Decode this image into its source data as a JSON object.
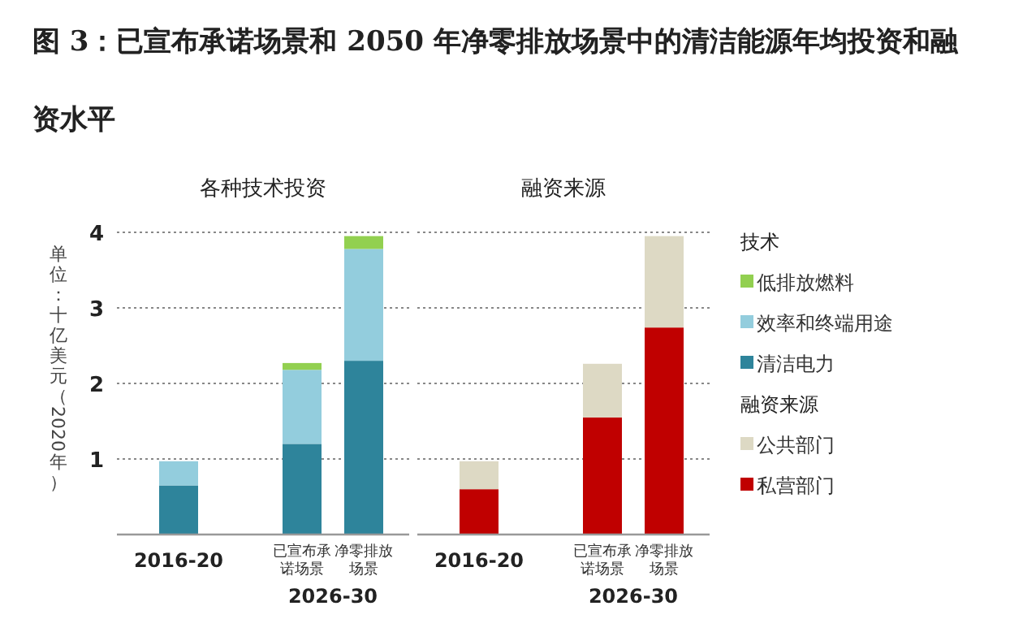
{
  "chart_data": [
    {
      "type": "bar",
      "stacked": true,
      "title": "图 3：已宣布承诺场景和 2050 年净零排放场景中的清洁能源年均投资和融资水平",
      "subtitle": "各种技术投资",
      "ylabel": "单位：十亿美元（2020年）",
      "categories": [
        "2016-20",
        "已宣布承诺场景",
        "净零排放场景"
      ],
      "annotations": [
        "2026-30"
      ],
      "ylim": [
        0,
        4
      ],
      "yticks": [
        1,
        2,
        3,
        4
      ],
      "grid": "y",
      "legend": "right",
      "legend_title": "技术",
      "series": [
        {
          "name": "清洁电力",
          "color": "#2e849b",
          "values": [
            0.65,
            1.2,
            2.3
          ]
        },
        {
          "name": "效率和终端用途",
          "color": "#93cddd",
          "values": [
            0.32,
            0.98,
            1.48
          ]
        },
        {
          "name": "低排放燃料",
          "color": "#92d050",
          "values": [
            null,
            0.09,
            0.17
          ]
        }
      ]
    },
    {
      "type": "bar",
      "stacked": true,
      "subtitle": "融资来源",
      "categories": [
        "2016-20",
        "已宣布承诺场景",
        "净零排放场景"
      ],
      "annotations": [
        "2026-30"
      ],
      "ylim": [
        0,
        4
      ],
      "yticks": [
        1,
        2,
        3,
        4
      ],
      "grid": "y",
      "tick_labels": "x",
      "legend": "right",
      "legend_title": "融资来源",
      "series": [
        {
          "name": "私营部门",
          "color": "#c00000",
          "values": [
            0.6,
            1.55,
            2.74
          ]
        },
        {
          "name": "公共部门",
          "color": "#ddd9c4",
          "values": [
            0.37,
            0.71,
            1.21
          ]
        }
      ]
    }
  ]
}
